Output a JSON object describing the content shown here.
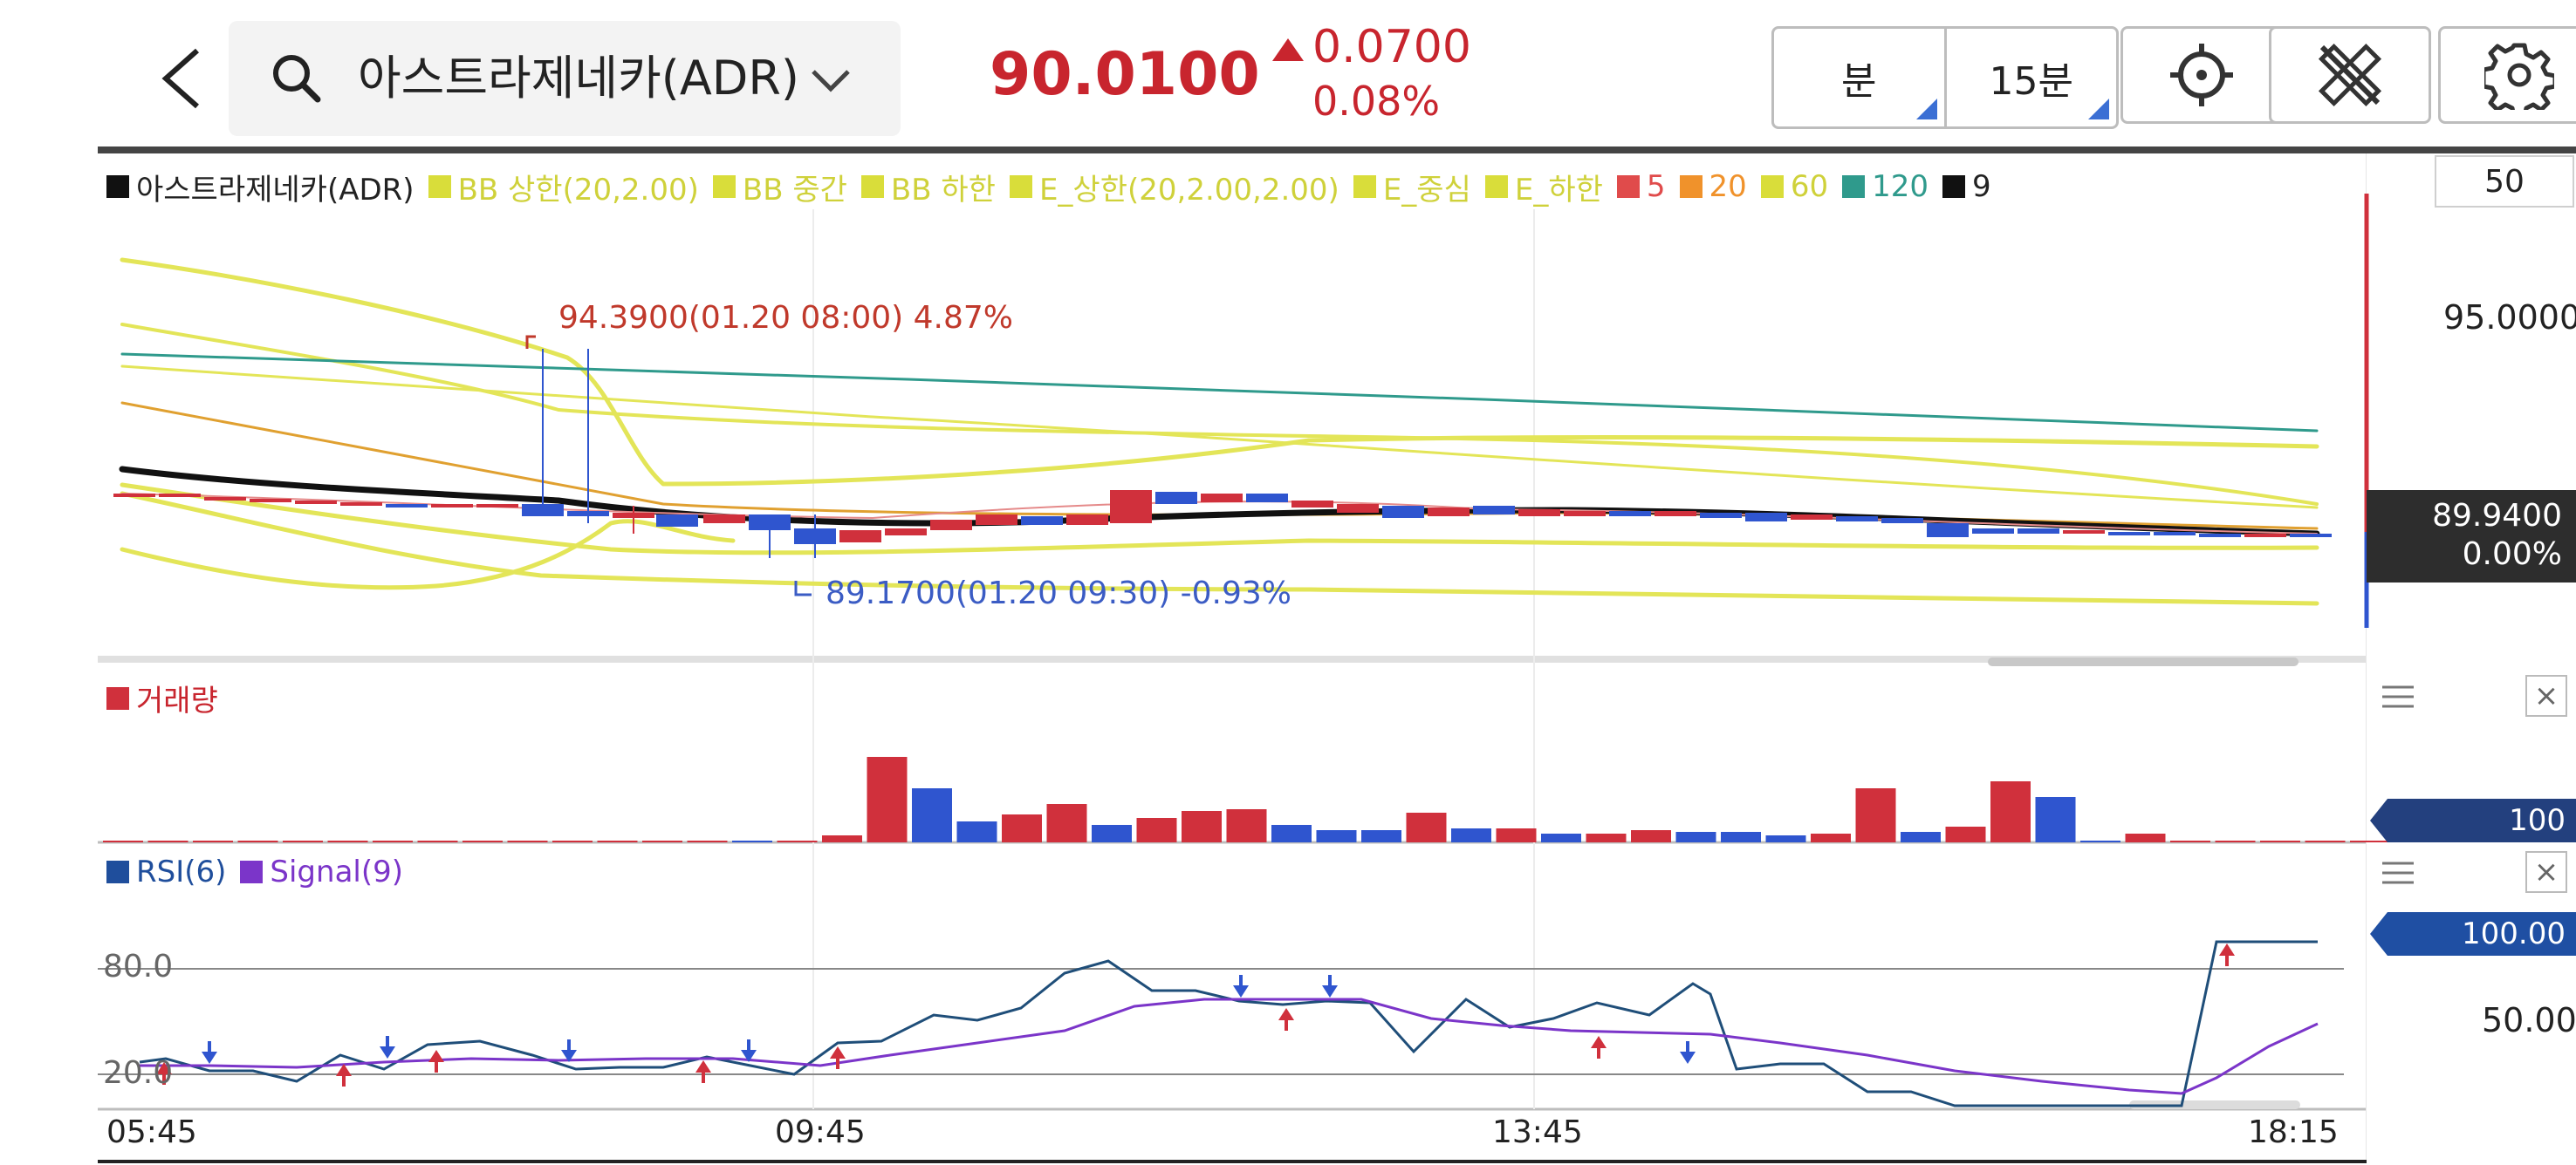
{
  "header": {
    "stock_name": "아스트라제네카(ADR)",
    "price": "90.0100",
    "change": "0.0700",
    "change_pct": "0.08%",
    "period_unit": "분",
    "period_value": "15분"
  },
  "legend": [
    {
      "label": "아스트라제네카(ADR)",
      "color": "#111111"
    },
    {
      "label": "BB 상한(20,2.00)",
      "color": "#d9dd3a"
    },
    {
      "label": "BB 중간",
      "color": "#d9dd3a"
    },
    {
      "label": "BB 하한",
      "color": "#d9dd3a"
    },
    {
      "label": "E_상한(20,2.00,2.00)",
      "color": "#d9dd3a"
    },
    {
      "label": "E_중심",
      "color": "#d9dd3a"
    },
    {
      "label": "E_하한",
      "color": "#d9dd3a"
    },
    {
      "label": "5",
      "color": "#e04b4b"
    },
    {
      "label": "20",
      "color": "#f0922b"
    },
    {
      "label": "60",
      "color": "#d9dd3a"
    },
    {
      "label": "120",
      "color": "#2f9a8c"
    },
    {
      "label": "9",
      "color": "#111111"
    }
  ],
  "price_axis": {
    "box_value": "50",
    "tick": "95.0000",
    "last_price": "89.9400",
    "last_pct": "0.00%"
  },
  "annotations": {
    "high": "94.3900(01.20 08:00) 4.87%",
    "low": "89.1700(01.20 09:30) -0.93%"
  },
  "volume": {
    "title": "거래량",
    "tag": "100",
    "color": "#d0303c"
  },
  "rsi": {
    "rsi_label": "RSI(6)",
    "signal_label": "Signal(9)",
    "level_high": "80.0",
    "level_low": "20.0",
    "tag": "100.00",
    "axis_mid": "50.00"
  },
  "x_axis": [
    "05:45",
    "09:45",
    "13:45",
    "18:15"
  ],
  "colors": {
    "up": "#d0303c",
    "down": "#2f55cf",
    "accent_red": "#c8252e"
  },
  "icons": [
    "back-arrow-icon",
    "search-icon",
    "chevron-down-icon",
    "crosshair-icon",
    "cross-tools-icon",
    "gear-icon",
    "menu-icon",
    "close-icon"
  ]
}
